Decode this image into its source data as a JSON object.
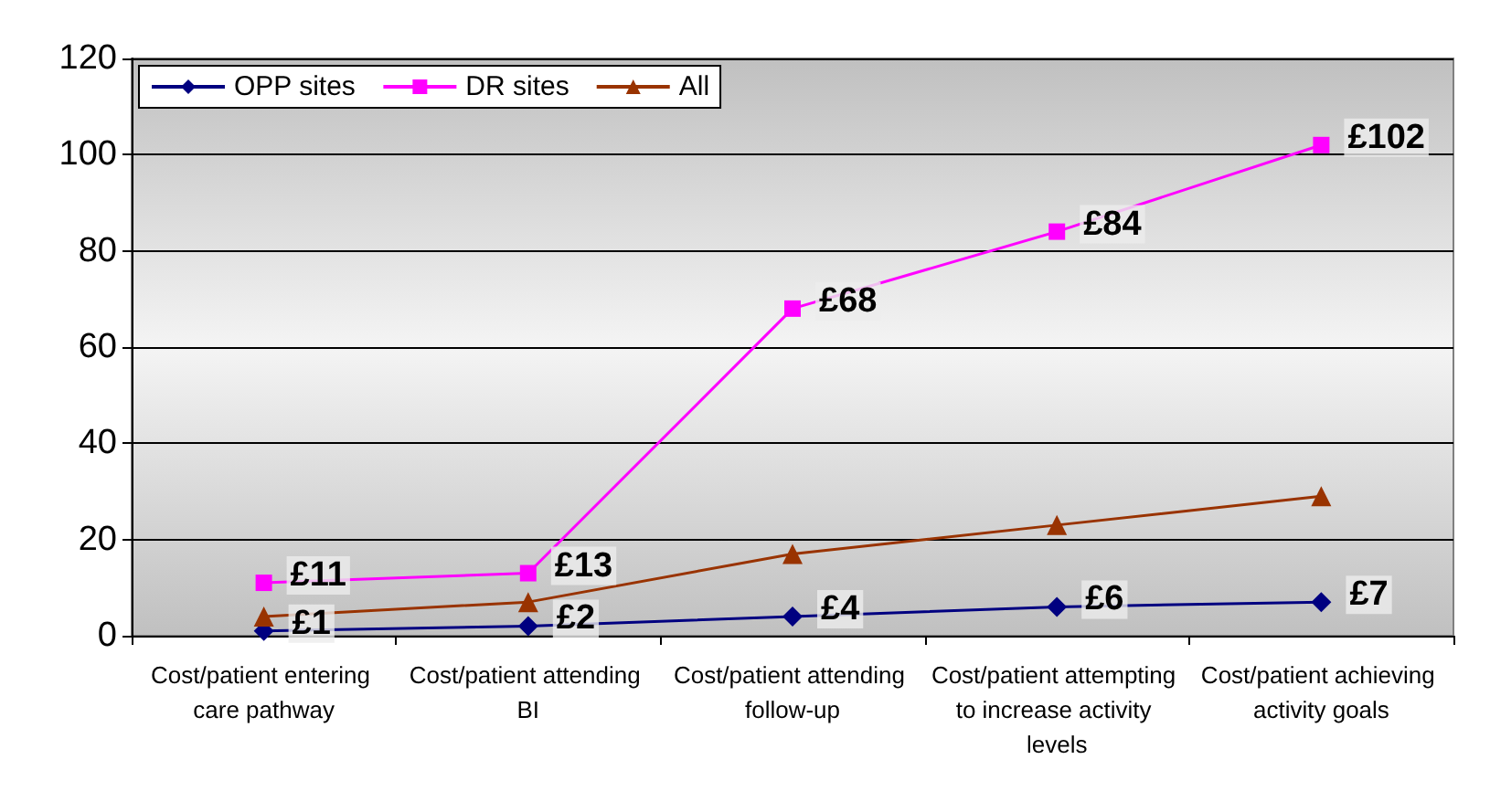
{
  "chart_data": {
    "type": "line",
    "categories": [
      "Cost/patient entering care pathway",
      "Cost/patient attending BI",
      "Cost/patient attending follow-up",
      "Cost/patient attempting to increase activity levels",
      "Cost/patient achieving activity goals"
    ],
    "series": [
      {
        "name": "OPP sites",
        "color": "#000080",
        "marker": "diamond",
        "values": [
          1,
          2,
          4,
          6,
          7
        ],
        "value_labels": [
          "£1",
          "£2",
          "£4",
          "£6",
          "£7"
        ]
      },
      {
        "name": "DR sites",
        "color": "#ff00ff",
        "marker": "square",
        "values": [
          11,
          13,
          68,
          84,
          102
        ],
        "value_labels": [
          "£11",
          "£13",
          "£68",
          "£84",
          "£102"
        ]
      },
      {
        "name": "All",
        "color": "#993300",
        "marker": "triangle",
        "values": [
          4,
          7,
          17,
          23,
          29
        ]
      }
    ],
    "ylim": [
      0,
      120
    ],
    "yticks": [
      0,
      20,
      40,
      60,
      80,
      100,
      120
    ],
    "grid": "y",
    "legend": "top left"
  }
}
